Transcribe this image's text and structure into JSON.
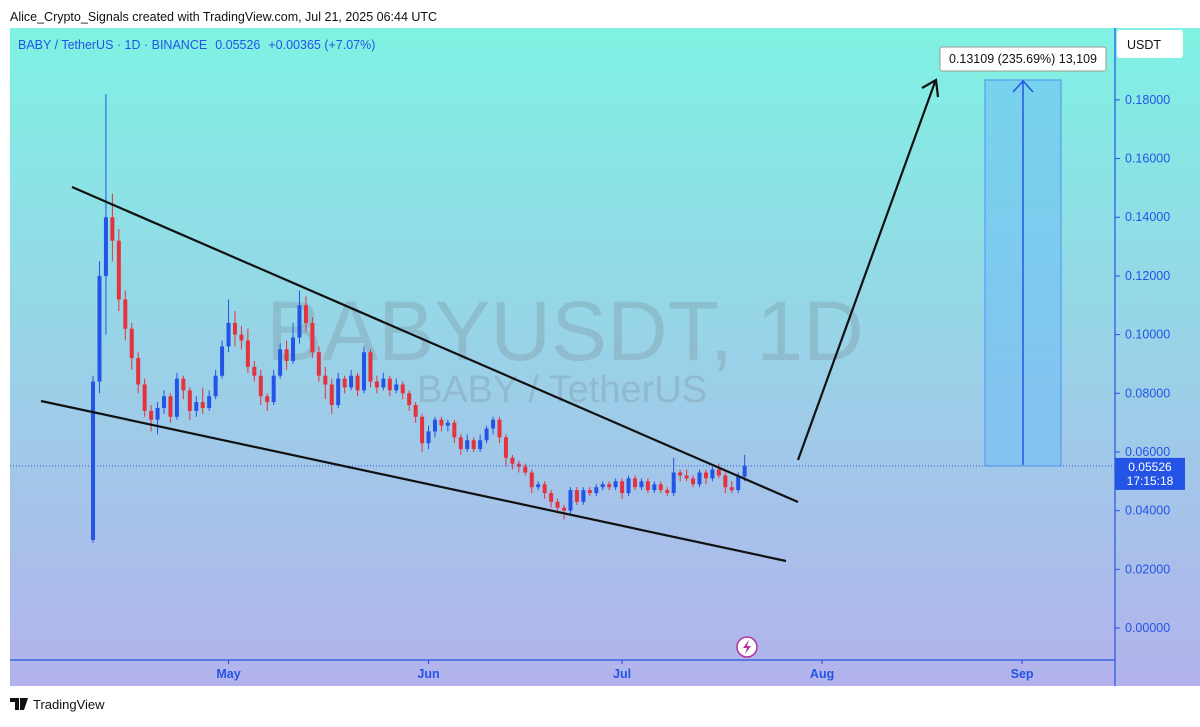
{
  "header": {
    "credit": "Alice_Crypto_Signals created with TradingView.com, Jul 21, 2025 06:44 UTC"
  },
  "legend": {
    "symbol": "BABY / TetherUS · 1D · BINANCE",
    "price": "0.05526",
    "change": "+0.00365 (+7.07%)"
  },
  "watermark": {
    "main": "BABYUSDT, 1D",
    "sub": "BABY / TetherUS"
  },
  "measure_label": "0.13109 (235.69%) 13,109",
  "price_tag": {
    "price": "0.05526",
    "countdown": "17:15:18"
  },
  "footer": {
    "brand": "TradingView"
  },
  "chart_data": {
    "type": "candlestick",
    "y_axis_label": "USDT",
    "up_color": "#2454e6",
    "down_color": "#e5323e",
    "ylim": [
      -0.0109,
      0.2045
    ],
    "yticks": [
      {
        "value": 0,
        "label": "0.00000"
      },
      {
        "value": 0.02,
        "label": "0.02000"
      },
      {
        "value": 0.04,
        "label": "0.04000"
      },
      {
        "value": 0.06,
        "label": "0.06000"
      },
      {
        "value": 0.08,
        "label": "0.08000"
      },
      {
        "value": 0.1,
        "label": "0.10000"
      },
      {
        "value": 0.12,
        "label": "0.12000"
      },
      {
        "value": 0.14,
        "label": "0.14000"
      },
      {
        "value": 0.16,
        "label": "0.16000"
      },
      {
        "value": 0.18,
        "label": "0.18000"
      }
    ],
    "xlim": [
      -12.87,
      158.4
    ],
    "xticks": [
      {
        "value": 21,
        "label": "May"
      },
      {
        "value": 52,
        "label": "Jun"
      },
      {
        "value": 82,
        "label": "Jul"
      },
      {
        "value": 113,
        "label": "Aug"
      },
      {
        "value": 144,
        "label": "Sep"
      }
    ],
    "last_price": 0.05526,
    "open": [
      0.03,
      0.084,
      0.12,
      0.14,
      0.132,
      0.112,
      0.102,
      0.092,
      0.083,
      0.074,
      0.071,
      0.075,
      0.079,
      0.072,
      0.085,
      0.081,
      0.074,
      0.077,
      0.075,
      0.079,
      0.086,
      0.096,
      0.104,
      0.1,
      0.098,
      0.089,
      0.086,
      0.079,
      0.077,
      0.086,
      0.095,
      0.091,
      0.099,
      0.11,
      0.104,
      0.094,
      0.086,
      0.083,
      0.076,
      0.085,
      0.082,
      0.086,
      0.081,
      0.094,
      0.084,
      0.082,
      0.085,
      0.081,
      0.083,
      0.08,
      0.076,
      0.072,
      0.063,
      0.067,
      0.071,
      0.069,
      0.07,
      0.065,
      0.061,
      0.064,
      0.061,
      0.064,
      0.068,
      0.071,
      0.065,
      0.058,
      0.056,
      0.055,
      0.053,
      0.048,
      0.049,
      0.046,
      0.043,
      0.041,
      0.04,
      0.047,
      0.043,
      0.047,
      0.046,
      0.048,
      0.049,
      0.048,
      0.05,
      0.046,
      0.051,
      0.048,
      0.05,
      0.047,
      0.049,
      0.047,
      0.046,
      0.053,
      0.052,
      0.051,
      0.049,
      0.053,
      0.051,
      0.054,
      0.052,
      0.048,
      0.047,
      0.05161
    ],
    "high": [
      0.086,
      0.125,
      0.182,
      0.148,
      0.136,
      0.115,
      0.104,
      0.094,
      0.085,
      0.076,
      0.077,
      0.081,
      0.08,
      0.087,
      0.086,
      0.082,
      0.079,
      0.082,
      0.081,
      0.088,
      0.098,
      0.112,
      0.108,
      0.103,
      0.102,
      0.091,
      0.088,
      0.08,
      0.088,
      0.097,
      0.098,
      0.104,
      0.115,
      0.113,
      0.106,
      0.096,
      0.089,
      0.085,
      0.087,
      0.086,
      0.088,
      0.087,
      0.096,
      0.095,
      0.086,
      0.087,
      0.086,
      0.085,
      0.084,
      0.081,
      0.077,
      0.073,
      0.069,
      0.072,
      0.072,
      0.071,
      0.071,
      0.066,
      0.066,
      0.065,
      0.066,
      0.069,
      0.072,
      0.072,
      0.066,
      0.059,
      0.057,
      0.056,
      0.054,
      0.05,
      0.05,
      0.047,
      0.044,
      0.042,
      0.048,
      0.048,
      0.048,
      0.048,
      0.049,
      0.05,
      0.05,
      0.051,
      0.051,
      0.052,
      0.052,
      0.051,
      0.051,
      0.05,
      0.05,
      0.048,
      0.058,
      0.054,
      0.054,
      0.052,
      0.054,
      0.054,
      0.055,
      0.056,
      0.053,
      0.05,
      0.053,
      0.059
    ],
    "low": [
      0.029,
      0.08,
      0.1,
      0.125,
      0.108,
      0.098,
      0.088,
      0.08,
      0.072,
      0.067,
      0.066,
      0.073,
      0.07,
      0.071,
      0.078,
      0.071,
      0.072,
      0.073,
      0.074,
      0.078,
      0.085,
      0.094,
      0.096,
      0.095,
      0.087,
      0.084,
      0.076,
      0.074,
      0.076,
      0.085,
      0.088,
      0.09,
      0.097,
      0.101,
      0.092,
      0.084,
      0.078,
      0.073,
      0.075,
      0.08,
      0.081,
      0.079,
      0.08,
      0.082,
      0.08,
      0.081,
      0.079,
      0.08,
      0.078,
      0.074,
      0.07,
      0.06,
      0.061,
      0.065,
      0.067,
      0.067,
      0.063,
      0.059,
      0.06,
      0.06,
      0.06,
      0.063,
      0.066,
      0.063,
      0.055,
      0.054,
      0.053,
      0.052,
      0.046,
      0.047,
      0.044,
      0.041,
      0.039,
      0.037,
      0.039,
      0.042,
      0.042,
      0.045,
      0.045,
      0.047,
      0.047,
      0.047,
      0.044,
      0.045,
      0.047,
      0.047,
      0.046,
      0.046,
      0.046,
      0.045,
      0.045,
      0.05,
      0.05,
      0.048,
      0.048,
      0.049,
      0.05,
      0.051,
      0.046,
      0.046,
      0.046,
      0.05
    ],
    "close": [
      0.084,
      0.12,
      0.14,
      0.132,
      0.112,
      0.102,
      0.092,
      0.083,
      0.074,
      0.071,
      0.075,
      0.079,
      0.072,
      0.085,
      0.081,
      0.074,
      0.077,
      0.075,
      0.079,
      0.086,
      0.096,
      0.104,
      0.1,
      0.098,
      0.089,
      0.086,
      0.079,
      0.077,
      0.086,
      0.095,
      0.091,
      0.099,
      0.11,
      0.104,
      0.094,
      0.086,
      0.083,
      0.076,
      0.085,
      0.082,
      0.086,
      0.081,
      0.094,
      0.084,
      0.082,
      0.085,
      0.081,
      0.083,
      0.08,
      0.076,
      0.072,
      0.063,
      0.067,
      0.071,
      0.069,
      0.07,
      0.065,
      0.061,
      0.064,
      0.061,
      0.064,
      0.068,
      0.071,
      0.065,
      0.058,
      0.056,
      0.055,
      0.053,
      0.048,
      0.049,
      0.046,
      0.043,
      0.041,
      0.04,
      0.047,
      0.043,
      0.047,
      0.046,
      0.048,
      0.049,
      0.048,
      0.05,
      0.046,
      0.051,
      0.048,
      0.05,
      0.047,
      0.049,
      0.047,
      0.046,
      0.053,
      0.052,
      0.051,
      0.049,
      0.053,
      0.051,
      0.054,
      0.052,
      0.048,
      0.047,
      0.05161,
      0.05526
    ]
  }
}
